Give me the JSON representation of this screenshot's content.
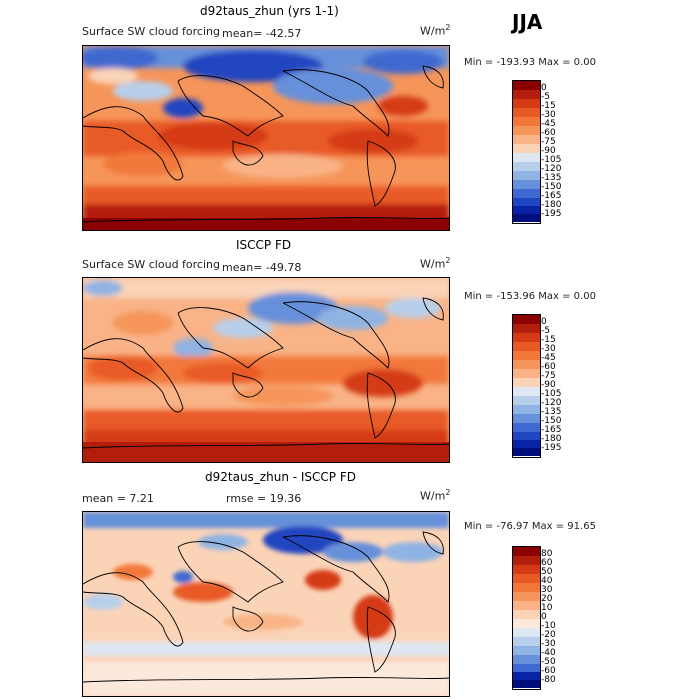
{
  "season": "JJA",
  "units_base": "W/m",
  "units_exp": "2",
  "panels": [
    {
      "title": "d92taus_zhun (yrs 1-1)",
      "subtitle": "Surface SW cloud forcing",
      "mean_text": "mean= -42.57",
      "minmax_text": "Min = -193.93  Max =    0.00",
      "colorbar_labels": [
        "0",
        "-5",
        "-15",
        "-30",
        "-45",
        "-60",
        "-75",
        "-90",
        "-105",
        "-120",
        "-135",
        "-150",
        "-165",
        "-180",
        "-195"
      ]
    },
    {
      "title": "ISCCP FD",
      "subtitle": "Surface SW cloud forcing",
      "mean_text": "mean= -49.78",
      "minmax_text": "Min = -153.96  Max =    0.00",
      "colorbar_labels": [
        "0",
        "-5",
        "-15",
        "-30",
        "-45",
        "-60",
        "-75",
        "-90",
        "-105",
        "-120",
        "-135",
        "-150",
        "-165",
        "-180",
        "-195"
      ]
    },
    {
      "title": "d92taus_zhun - ISCCP FD",
      "mean_text": "mean =    7.21",
      "rmse_text": "rmse =  19.36",
      "minmax_text": "Min = -76.97  Max =  91.65",
      "colorbar_labels": [
        "80",
        "60",
        "50",
        "40",
        "30",
        "20",
        "10",
        "0",
        "-10",
        "-20",
        "-30",
        "-40",
        "-50",
        "-60",
        "-80"
      ]
    }
  ],
  "chart_data": [
    {
      "type": "heatmap",
      "title": "d92taus_zhun (yrs 1-1)",
      "subtitle": "Surface SW cloud forcing",
      "units": "W/m2",
      "mean": -42.57,
      "min": -193.93,
      "max": 0.0,
      "colorbar_levels": [
        0,
        -5,
        -15,
        -30,
        -45,
        -60,
        -75,
        -90,
        -105,
        -120,
        -135,
        -150,
        -165,
        -180,
        -195
      ],
      "colors": [
        "#8b0000",
        "#b31d0b",
        "#d43a14",
        "#e85a25",
        "#f2783a",
        "#f6955a",
        "#f9b387",
        "#fbd4b8",
        "#dfe7f3",
        "#b8cfeb",
        "#8fb3e3",
        "#6690da",
        "#3f69d0",
        "#2045c0",
        "#0a23a6",
        "#000d7d"
      ]
    },
    {
      "type": "heatmap",
      "title": "ISCCP FD",
      "subtitle": "Surface SW cloud forcing",
      "units": "W/m2",
      "mean": -49.78,
      "min": -153.96,
      "max": 0.0,
      "colorbar_levels": [
        0,
        -5,
        -15,
        -30,
        -45,
        -60,
        -75,
        -90,
        -105,
        -120,
        -135,
        -150,
        -165,
        -180,
        -195
      ],
      "colors": [
        "#8b0000",
        "#b31d0b",
        "#d43a14",
        "#e85a25",
        "#f2783a",
        "#f6955a",
        "#f9b387",
        "#fbd4b8",
        "#dfe7f3",
        "#b8cfeb",
        "#8fb3e3",
        "#6690da",
        "#3f69d0",
        "#2045c0",
        "#0a23a6",
        "#000d7d"
      ]
    },
    {
      "type": "heatmap",
      "title": "d92taus_zhun - ISCCP FD",
      "units": "W/m2",
      "mean": 7.21,
      "rmse": 19.36,
      "min": -76.97,
      "max": 91.65,
      "colorbar_levels": [
        80,
        60,
        50,
        40,
        30,
        20,
        10,
        0,
        -10,
        -20,
        -30,
        -40,
        -50,
        -60,
        -80
      ],
      "colors": [
        "#8b0000",
        "#b31d0b",
        "#d43a14",
        "#e85a25",
        "#f2783a",
        "#f6955a",
        "#f9b387",
        "#fbd4b8",
        "#fde8dc",
        "#dfe7f3",
        "#b8cfeb",
        "#8fb3e3",
        "#6690da",
        "#3f69d0",
        "#0a23a6",
        "#000d7d"
      ]
    }
  ]
}
